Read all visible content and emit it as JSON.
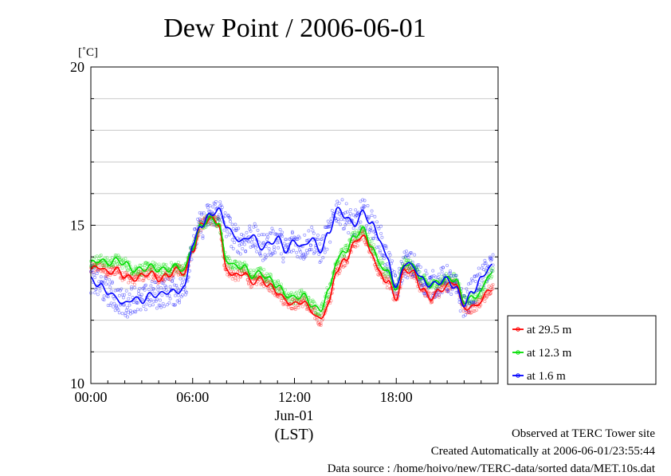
{
  "chart_data": {
    "type": "line",
    "title": "Dew Point / 2006-06-01",
    "yunit": "[˚C]",
    "ylim": [
      10,
      20
    ],
    "yticks": [
      "10",
      "15",
      "20"
    ],
    "ygrid": [
      11,
      12,
      13,
      14,
      15,
      16,
      17,
      18,
      19
    ],
    "xlim": [
      0,
      24
    ],
    "xticks": [
      {
        "x": 0,
        "label": "00:00"
      },
      {
        "x": 6,
        "label": "06:00"
      },
      {
        "x": 12,
        "label": "12:00"
      },
      {
        "x": 18,
        "label": "18:00"
      }
    ],
    "xdate": "Jun-01",
    "xlabel": "(LST)",
    "grid": true,
    "legend_position": "right",
    "series": [
      {
        "name": "at 29.5 m",
        "color": "#ff0000",
        "x": [
          0,
          0.5,
          1,
          1.5,
          2,
          2.5,
          3,
          3.5,
          4,
          4.5,
          5,
          5.5,
          6,
          6.5,
          7,
          7.5,
          8,
          8.5,
          9,
          9.5,
          10,
          10.5,
          11,
          11.5,
          12,
          12.5,
          13,
          13.5,
          14,
          14.5,
          15,
          15.5,
          16,
          16.5,
          17,
          17.5,
          18,
          18.5,
          19,
          19.5,
          20,
          20.5,
          21,
          21.5,
          22,
          22.5,
          23,
          23.5
        ],
        "values": [
          13.6,
          13.7,
          13.5,
          13.6,
          13.4,
          13.3,
          13.4,
          13.5,
          13.3,
          13.4,
          13.6,
          13.5,
          14.2,
          15.0,
          15.2,
          15.1,
          13.6,
          13.4,
          13.5,
          13.2,
          13.3,
          13.1,
          12.9,
          12.6,
          12.5,
          12.6,
          12.3,
          12.0,
          12.5,
          13.6,
          13.9,
          14.4,
          14.7,
          14.2,
          13.5,
          13.2,
          12.7,
          13.6,
          13.5,
          13.0,
          12.7,
          12.9,
          13.1,
          13.2,
          12.4,
          12.4,
          12.6,
          13.0
        ]
      },
      {
        "name": "at 12.3 m",
        "color": "#00dd00",
        "x": [
          0,
          0.5,
          1,
          1.5,
          2,
          2.5,
          3,
          3.5,
          4,
          4.5,
          5,
          5.5,
          6,
          6.5,
          7,
          7.5,
          8,
          8.5,
          9,
          9.5,
          10,
          10.5,
          11,
          11.5,
          12,
          12.5,
          13,
          13.5,
          14,
          14.5,
          15,
          15.5,
          16,
          16.5,
          17,
          17.5,
          18,
          18.5,
          19,
          19.5,
          20,
          20.5,
          21,
          21.5,
          22,
          22.5,
          23,
          23.5
        ],
        "values": [
          13.8,
          13.9,
          13.8,
          13.9,
          13.8,
          13.6,
          13.6,
          13.7,
          13.6,
          13.6,
          13.7,
          13.6,
          14.3,
          15.0,
          15.2,
          15.1,
          13.9,
          13.7,
          13.7,
          13.4,
          13.5,
          13.3,
          13.1,
          12.8,
          12.7,
          12.8,
          12.5,
          12.3,
          12.9,
          13.9,
          14.2,
          14.6,
          14.9,
          14.4,
          13.8,
          13.5,
          13.0,
          13.8,
          13.7,
          13.3,
          13.1,
          13.2,
          13.3,
          13.3,
          12.6,
          12.7,
          12.9,
          13.5
        ]
      },
      {
        "name": "at 1.6 m",
        "color": "#0000ff",
        "x": [
          0,
          0.5,
          1,
          1.5,
          2,
          2.5,
          3,
          3.5,
          4,
          4.5,
          5,
          5.5,
          6,
          6.5,
          7,
          7.5,
          8,
          8.5,
          9,
          9.5,
          10,
          10.5,
          11,
          11.5,
          12,
          12.5,
          13,
          13.5,
          14,
          14.5,
          15,
          15.5,
          16,
          16.5,
          17,
          17.5,
          18,
          18.5,
          19,
          19.5,
          20,
          20.5,
          21,
          21.5,
          22,
          22.5,
          23,
          23.5
        ],
        "values": [
          13.3,
          13.1,
          12.9,
          12.7,
          12.5,
          12.7,
          12.6,
          12.8,
          12.8,
          12.9,
          12.9,
          13.0,
          14.4,
          15.0,
          15.3,
          15.5,
          15.0,
          14.6,
          14.5,
          14.7,
          14.3,
          14.4,
          14.6,
          14.2,
          14.5,
          14.3,
          14.6,
          14.2,
          14.7,
          15.5,
          15.3,
          15.0,
          15.4,
          15.1,
          14.6,
          13.9,
          13.0,
          13.8,
          13.7,
          13.3,
          13.1,
          13.2,
          13.3,
          13.0,
          12.5,
          12.9,
          13.3,
          13.7
        ]
      }
    ]
  },
  "footer": {
    "observed": "Observed at TERC Tower site",
    "created": "Created Automatically at 2006-06-01/23:55:44",
    "source": "Data source : /home/hoivo/new/TERC-data/sorted  data/MET.10s.dat"
  }
}
